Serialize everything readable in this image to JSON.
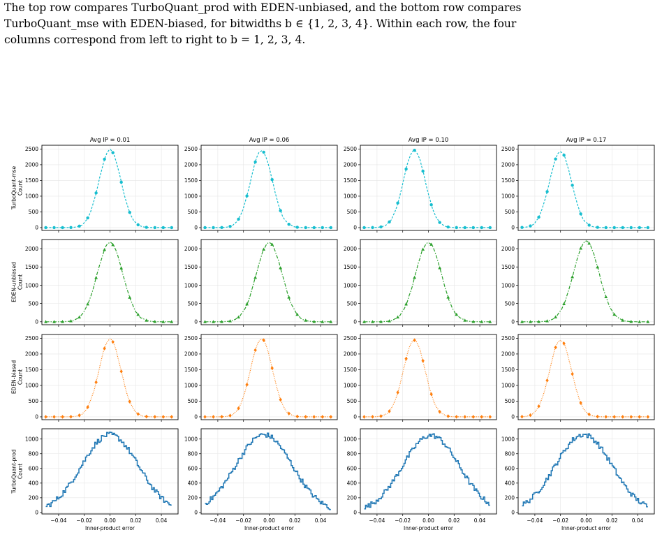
{
  "caption": {
    "lines": [
      "The top row compares TurboQuant_prod with EDEN-unbiased, and the bottom row compares",
      "TurboQuant_mse with EDEN-biased, for bitwidths b ∈ {1, 2, 3, 4}. Within each row, the four",
      "columns correspond from left to right to b = 1, 2, 3, 4."
    ]
  },
  "colors": {
    "turboquant_mse": "#17becf",
    "eden_unbiased": "#2ca02c",
    "eden_biased": "#ff7f0e",
    "turboquant_prod": "#1f77b4",
    "grid": "#e6e6e6"
  },
  "chart_data": {
    "type": "line",
    "layout": "4x4 grid of histogram subplots, shared x axis per column",
    "column_titles": [
      "Avg IP = 0.01",
      "Avg IP = 0.06",
      "Avg IP = 0.10",
      "Avg IP = 0.17"
    ],
    "xlabel": "Inner-product error",
    "xlim": [
      -0.053,
      0.053
    ],
    "xticks": [
      -0.04,
      -0.02,
      0.0,
      0.02,
      0.04
    ],
    "xtick_labels": [
      "−0.04",
      "−0.02",
      "0.00",
      "0.02",
      "0.04"
    ],
    "grid": true,
    "rows": [
      {
        "name": "TurboQuant-mse",
        "ylabel": "TurboQuant-mse\nCount",
        "style": "dashed with circle markers",
        "color": "#17becf",
        "ylim": [
          -90,
          2620
        ],
        "yticks": [
          0,
          500,
          1000,
          1500,
          2000,
          2500
        ],
        "peak_count": [
          2470,
          2450,
          2460,
          2420
        ],
        "peak_x": [
          0.0,
          -0.006,
          -0.011,
          -0.02
        ],
        "sigma": 0.0085
      },
      {
        "name": "EDEN-unbiased",
        "ylabel": "EDEN-unbiased\nCount",
        "style": "dash-dot with triangle markers",
        "color": "#2ca02c",
        "ylim": [
          -80,
          2250
        ],
        "yticks": [
          0,
          500,
          1000,
          1500,
          2000
        ],
        "peak_count": [
          2160,
          2170,
          2170,
          2200
        ],
        "peak_x": [
          0.0,
          0.0,
          0.0,
          0.0
        ],
        "sigma": 0.01
      },
      {
        "name": "EDEN-biased",
        "ylabel": "EDEN-biased\nCount",
        "style": "dotted with diamond markers",
        "color": "#ff7f0e",
        "ylim": [
          -90,
          2620
        ],
        "yticks": [
          0,
          500,
          1000,
          1500,
          2000,
          2500
        ],
        "peak_count": [
          2470,
          2490,
          2440,
          2450
        ],
        "peak_x": [
          0.0,
          -0.006,
          -0.011,
          -0.02
        ],
        "sigma": 0.0085
      },
      {
        "name": "TurboQuant-prod",
        "ylabel": "TurboQuant-prod\nCount",
        "style": "solid step histogram",
        "color": "#1f77b4",
        "ylim": [
          -20,
          1140
        ],
        "yticks": [
          0,
          200,
          400,
          600,
          800,
          1000
        ],
        "peak_count": [
          1060,
          1060,
          1050,
          1060
        ],
        "peak_x": [
          0.0,
          -0.004,
          0.002,
          -0.002
        ],
        "sigma": 0.022
      }
    ]
  }
}
